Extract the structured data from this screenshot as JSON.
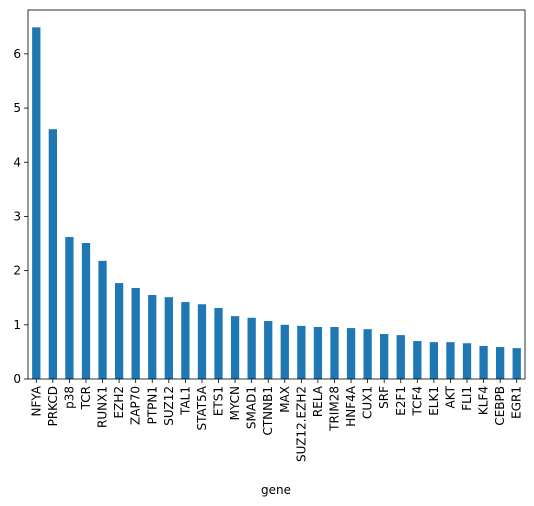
{
  "chart_data": {
    "type": "bar",
    "xlabel": "gene",
    "categories": [
      "NFYA",
      "PRKCD",
      "p38",
      "TCR",
      "RUNX1",
      "EZH2",
      "ZAP70",
      "PTPN1",
      "SUZ12",
      "TAL1",
      "STAT5A",
      "ETS1",
      "MYCN",
      "SMAD1",
      "CTNNB1",
      "MAX",
      "SUZ12.EZH2",
      "RELA",
      "TRIM28",
      "HNF4A",
      "CUX1",
      "SRF",
      "E2F1",
      "TCF4",
      "ELK1",
      "AKT",
      "FLI1",
      "KLF4",
      "CEBPB",
      "EGR1"
    ],
    "values": [
      6.49,
      4.61,
      2.62,
      2.51,
      2.18,
      1.77,
      1.68,
      1.55,
      1.51,
      1.42,
      1.38,
      1.31,
      1.16,
      1.13,
      1.07,
      1.0,
      0.98,
      0.96,
      0.96,
      0.94,
      0.92,
      0.83,
      0.81,
      0.7,
      0.68,
      0.68,
      0.66,
      0.61,
      0.59,
      0.57
    ],
    "color": "#1f77b4",
    "ylim": [
      0,
      6.81
    ],
    "yticks": [
      0,
      1,
      2,
      3,
      4,
      5,
      6
    ],
    "grid": false
  }
}
